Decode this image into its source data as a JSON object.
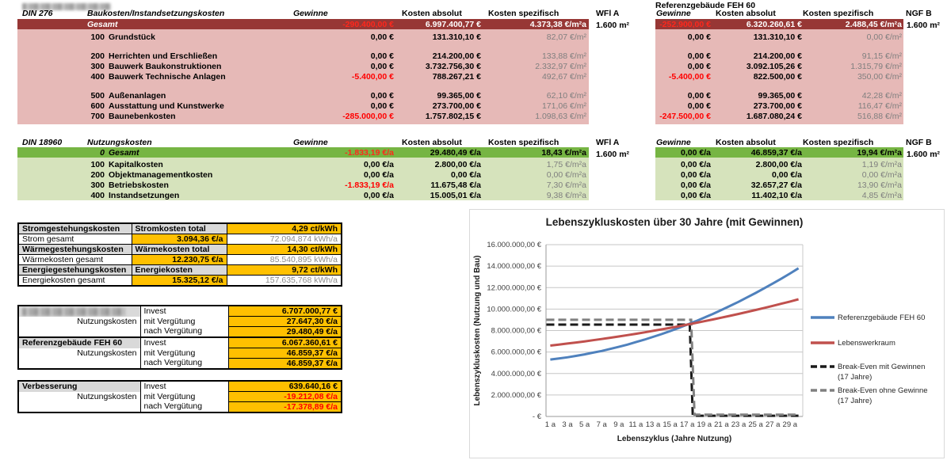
{
  "colors": {
    "dark_red": "#973735",
    "pink": "#e6b9b7",
    "green": "#76b543",
    "light_green": "#d6e3bc",
    "orange": "#ffc000",
    "gray_cell": "#d9d9d9",
    "negative": "#ff0000",
    "line_blue": "#4f81bd",
    "line_red": "#c0504d",
    "break_even_black": "#1a1a1a",
    "break_even_gray": "#808080"
  },
  "build_table": {
    "din_label": "DIN 276",
    "title": "Baukosten/Instandsetzungskosten",
    "headers": {
      "gewinne": "Gewinne",
      "absolut": "Kosten absolut",
      "spezifisch": "Kosten spezifisch"
    },
    "left_area": {
      "label": "WFl A",
      "value": "1.600 m²"
    },
    "right_title": "Referenzgebäude FEH 60",
    "right_area": {
      "label": "NGF B",
      "value": "1.600 m²"
    },
    "gesamt_label": "Gesamt",
    "gesamt_left": {
      "gewinne": "-290.400,00 €",
      "absolut": "6.997.400,77 €",
      "spezifisch": "4.373,38 €/m²a"
    },
    "gesamt_right": {
      "gewinne": "-252.900,00 €",
      "absolut": "6.320.260,61 €",
      "spezifisch": "2.488,45 €/m²a"
    },
    "rows": [
      {
        "code": "100",
        "label": "Grundstück",
        "l": [
          "0,00 €",
          "131.310,10 €",
          "82,07 €/m²"
        ],
        "r": [
          "0,00 €",
          "131.310,10 €",
          "0,00 €/m²"
        ],
        "gap_before": false
      },
      {
        "code": "200",
        "label": "Herrichten und Erschließen",
        "l": [
          "0,00 €",
          "214.200,00 €",
          "133,88 €/m²"
        ],
        "r": [
          "0,00 €",
          "214.200,00 €",
          "91,15 €/m²"
        ],
        "gap_before": true
      },
      {
        "code": "300",
        "label": "Bauwerk Baukonstruktionen",
        "l": [
          "0,00 €",
          "3.732.756,30 €",
          "2.332,97 €/m²"
        ],
        "r": [
          "0,00 €",
          "3.092.105,26 €",
          "1.315,79 €/m²"
        ],
        "gap_before": false
      },
      {
        "code": "400",
        "label": "Bauwerk Technische Anlagen",
        "l": [
          "-5.400,00 €",
          "788.267,21 €",
          "492,67 €/m²"
        ],
        "r": [
          "-5.400,00 €",
          "822.500,00 €",
          "350,00 €/m²"
        ],
        "gap_before": false
      },
      {
        "code": "500",
        "label": "Außenanlagen",
        "l": [
          "0,00 €",
          "99.365,00 €",
          "62,10 €/m²"
        ],
        "r": [
          "0,00 €",
          "99.365,00 €",
          "42,28 €/m²"
        ],
        "gap_before": true
      },
      {
        "code": "600",
        "label": "Ausstattung und Kunstwerke",
        "l": [
          "0,00 €",
          "273.700,00 €",
          "171,06 €/m²"
        ],
        "r": [
          "0,00 €",
          "273.700,00 €",
          "116,47 €/m²"
        ],
        "gap_before": false
      },
      {
        "code": "700",
        "label": "Baunebenkosten",
        "l": [
          "-285.000,00 €",
          "1.757.802,15 €",
          "1.098,63 €/m²"
        ],
        "r": [
          "-247.500,00 €",
          "1.687.080,24 €",
          "516,88 €/m²"
        ],
        "gap_before": false
      }
    ]
  },
  "nutzung_table": {
    "din_label": "DIN 18960",
    "title": "Nutzungskosten",
    "headers": {
      "gewinne": "Gewinne",
      "absolut": "Kosten absolut",
      "spezifisch": "Kosten spezifisch"
    },
    "left_area": {
      "label": "WFl A",
      "value": "1.600 m²"
    },
    "right_area": {
      "label": "NGF B",
      "value": "1.600 m²"
    },
    "gesamt_code": "0",
    "gesamt_label": "Gesamt",
    "gesamt_left": {
      "gewinne": "-1.833,19 €/a",
      "absolut": "29.480,49 €/a",
      "spezifisch": "18,43 €/m²a"
    },
    "gesamt_right": {
      "gewinne": "0,00 €/a",
      "absolut": "46.859,37 €/a",
      "spezifisch": "19,94 €/m²a"
    },
    "rows": [
      {
        "code": "100",
        "label": "Kapitalkosten",
        "l": [
          "0,00 €/a",
          "2.800,00 €/a",
          "1,75 €/m²a"
        ],
        "r": [
          "0,00 €/a",
          "2.800,00 €/a",
          "1,19 €/m²a"
        ]
      },
      {
        "code": "200",
        "label": "Objektmanagementkosten",
        "l": [
          "0,00 €/a",
          "0,00 €/a",
          "0,00 €/m²a"
        ],
        "r": [
          "0,00 €/a",
          "0,00 €/a",
          "0,00 €/m²a"
        ]
      },
      {
        "code": "300",
        "label": "Betriebskosten",
        "l": [
          "-1.833,19 €/a",
          "11.675,48 €/a",
          "7,30 €/m²a"
        ],
        "r": [
          "0,00 €/a",
          "32.657,27 €/a",
          "13,90 €/m²a"
        ]
      },
      {
        "code": "400",
        "label": "Instandsetzungen",
        "l": [
          "0,00 €/a",
          "15.005,01 €/a",
          "9,38 €/m²a"
        ],
        "r": [
          "0,00 €/a",
          "11.402,10 €/a",
          "4,85 €/m²a"
        ]
      }
    ]
  },
  "energy_table": {
    "sections": [
      {
        "label": "Stromgestehungskosten",
        "total_label": "Stromkosten total",
        "rate": "4,29 ct/kWh",
        "row_label": "Strom gesamt",
        "cost": "3.094,36 €/a",
        "amount": "72.094,874 kWh/a"
      },
      {
        "label": "Wärmegestehungskosten",
        "total_label": "Wärmekosten total",
        "rate": "14,30 ct/kWh",
        "row_label": "Wärmekosten gesamt",
        "cost": "12.230,75 €/a",
        "amount": "85.540,895 kWh/a"
      },
      {
        "label": "Energiegestehungskosten",
        "total_label": "Energiekosten",
        "rate": "9,72 ct/kWh",
        "row_label": "Energiekosten gesamt",
        "cost": "15.325,12 €/a",
        "amount": "157.635,768 kWh/a"
      }
    ]
  },
  "invest_tables": {
    "labels": {
      "invest": "Invest",
      "nutzungskosten": "Nutzungskosten",
      "mit": "mit Vergütung",
      "nach": "nach Vergütung"
    },
    "blocks": [
      {
        "label": "",
        "redacted": true,
        "invest": "6.707.000,77 €",
        "mit": "27.647,30 €/a",
        "nach": "29.480,49 €/a"
      },
      {
        "label": "Referenzgebäude FEH 60",
        "redacted": false,
        "invest": "6.067.360,61 €",
        "mit": "46.859,37 €/a",
        "nach": "46.859,37 €/a"
      },
      {
        "label": "Verbesserung",
        "redacted": false,
        "invest": "639.640,16 €",
        "mit": "-19.212,08 €/a",
        "nach": "-17.378,89 €/a"
      }
    ]
  },
  "chart_data": {
    "type": "line",
    "title": "Lebenszykluskosten über 30 Jahre (mit Gewinnen)",
    "xlabel": "Lebenszyklus (Jahre Nutzung)",
    "ylabel": "Lebenszykluskosten (Nutzung und Bau)",
    "x_range": [
      1,
      30
    ],
    "x_tick_labels": [
      "1 a",
      "3 a",
      "5 a",
      "7 a",
      "9 a",
      "11 a",
      "13 a",
      "15 a",
      "17 a",
      "19 a",
      "21 a",
      "23 a",
      "25 a",
      "27 a",
      "29 a"
    ],
    "ylim": [
      0,
      16000000
    ],
    "y_ticks": [
      {
        "v": 0,
        "label": "-   €"
      },
      {
        "v": 2,
        "label": "2.000.000,00 €"
      },
      {
        "v": 4,
        "label": "4.000.000,00 €"
      },
      {
        "v": 6,
        "label": "6.000.000,00 €"
      },
      {
        "v": 8,
        "label": "8.000.000,00 €"
      },
      {
        "v": 10,
        "label": "10.000.000,00 €"
      },
      {
        "v": 12,
        "label": "12.000.000,00 €"
      },
      {
        "v": 14,
        "label": "14.000.000,00 €"
      },
      {
        "v": 16,
        "label": "16.000.000,00 €"
      }
    ],
    "values_unit": "Mio. EUR",
    "grid": true,
    "legend_position": "right",
    "break_even_years": 17,
    "series": [
      {
        "name": "Referenzgebäude FEH 60",
        "style": "solid",
        "color": "#4f81bd",
        "values_mio": [
          5.3,
          5.4,
          5.51,
          5.64,
          5.78,
          5.94,
          6.1,
          6.29,
          6.48,
          6.69,
          6.92,
          7.15,
          7.41,
          7.67,
          7.95,
          8.24,
          8.55,
          8.87,
          9.21,
          9.55,
          9.92,
          10.29,
          10.68,
          11.09,
          11.5,
          11.94,
          12.38,
          12.84,
          13.31,
          13.8
        ]
      },
      {
        "name": "Lebenswerkraum",
        "style": "solid",
        "color": "#c0504d",
        "values_mio": [
          6.6,
          6.69,
          6.79,
          6.89,
          6.99,
          7.1,
          7.21,
          7.33,
          7.45,
          7.57,
          7.7,
          7.83,
          7.97,
          8.11,
          8.25,
          8.4,
          8.55,
          8.71,
          8.87,
          9.03,
          9.2,
          9.37,
          9.55,
          9.73,
          9.92,
          10.11,
          10.3,
          10.5,
          10.7,
          10.91
        ]
      },
      {
        "name": "Break-Even mit Gewinnen (17 Jahre)",
        "style": "dashed",
        "color": "#1a1a1a",
        "points_mio": [
          [
            0.55,
            8.55
          ],
          [
            17.3,
            8.55
          ],
          [
            17.65,
            0.07
          ],
          [
            30,
            0.07
          ]
        ]
      },
      {
        "name": "Break-Even ohne Gewinne (17 Jahre)",
        "style": "dashed",
        "color": "#808080",
        "points_mio": [
          [
            0.55,
            9.0
          ],
          [
            17.45,
            9.0
          ],
          [
            17.85,
            0.16
          ],
          [
            30,
            0.16
          ]
        ]
      }
    ],
    "legend": [
      {
        "line1": "Referenzgebäude FEH 60",
        "line2": "",
        "series": 0
      },
      {
        "line1": "Lebenswerkraum",
        "line2": "",
        "series": 1
      },
      {
        "line1": "Break-Even mit Gewinnen",
        "line2": "(17 Jahre)",
        "series": 2
      },
      {
        "line1": "Break-Even ohne Gewinne",
        "line2": "(17 Jahre)",
        "series": 3
      }
    ]
  }
}
